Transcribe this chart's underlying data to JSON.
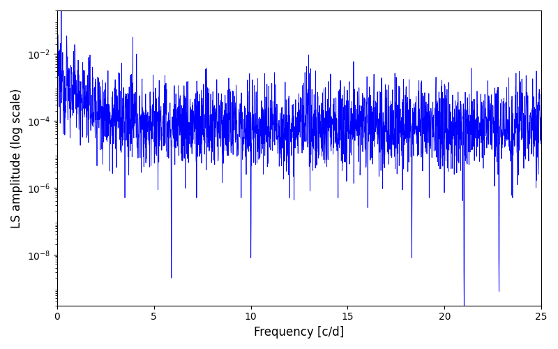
{
  "title": "",
  "xlabel": "Frequency [c/d]",
  "ylabel": "LS amplitude (log scale)",
  "xlim": [
    0,
    25
  ],
  "ylim": [
    3e-10,
    0.2
  ],
  "line_color": "#0000ff",
  "line_width": 0.6,
  "background_color": "#ffffff",
  "xlabel_fontsize": 12,
  "ylabel_fontsize": 12,
  "figsize": [
    8.0,
    5.0
  ],
  "dpi": 100,
  "seed": 12345,
  "n_points": 2500,
  "freq_max": 25.0
}
